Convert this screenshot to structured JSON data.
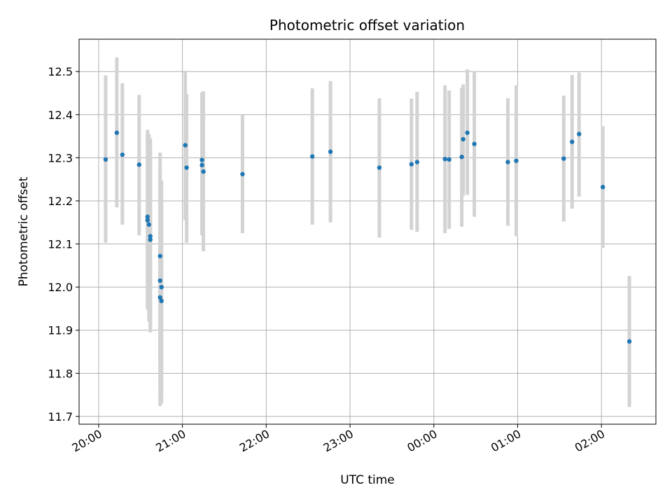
{
  "chart_data": {
    "type": "scatter",
    "title": "Photometric offset variation",
    "xlabel": "UTC time",
    "ylabel": "Photometric offset",
    "grid": true,
    "x_unit": "UTC time (HH:MM)",
    "xlim": [
      "19:46",
      "02:39"
    ],
    "ylim": [
      11.682,
      12.575
    ],
    "x_ticks": [
      "20:00",
      "21:00",
      "22:00",
      "23:00",
      "00:00",
      "01:00",
      "02:00"
    ],
    "y_ticks": [
      "11.7",
      "11.8",
      "11.9",
      "12.0",
      "12.1",
      "12.2",
      "12.3",
      "12.4",
      "12.5"
    ],
    "colors": {
      "point": "#1f77b4",
      "errorbar": "#d3d3d3",
      "grid": "#b0b0b0"
    },
    "points": [
      {
        "t": "20:05",
        "y": 12.296,
        "lo": 12.103,
        "hi": 12.491
      },
      {
        "t": "20:13",
        "y": 12.358,
        "lo": 12.185,
        "hi": 12.533
      },
      {
        "t": "20:17",
        "y": 12.307,
        "lo": 12.145,
        "hi": 12.473
      },
      {
        "t": "20:29",
        "y": 12.284,
        "lo": 12.12,
        "hi": 12.446
      },
      {
        "t": "20:35",
        "y": 12.163,
        "lo": 11.948,
        "hi": 12.365
      },
      {
        "t": "20:35",
        "y": 12.155,
        "lo": 11.96,
        "hi": 12.35
      },
      {
        "t": "20:36",
        "y": 12.145,
        "lo": 11.92,
        "hi": 12.355
      },
      {
        "t": "20:37",
        "y": 12.118,
        "lo": 11.895,
        "hi": 12.345
      },
      {
        "t": "20:37",
        "y": 12.11,
        "lo": 11.905,
        "hi": 12.33
      },
      {
        "t": "20:44",
        "y": 12.072,
        "lo": 11.83,
        "hi": 12.312
      },
      {
        "t": "20:44",
        "y": 12.015,
        "lo": 11.76,
        "hi": 12.265
      },
      {
        "t": "20:44",
        "y": 11.976,
        "lo": 11.724,
        "hi": 12.23
      },
      {
        "t": "20:45",
        "y": 12.0,
        "lo": 11.756,
        "hi": 12.247
      },
      {
        "t": "20:45",
        "y": 11.968,
        "lo": 11.73,
        "hi": 12.208
      },
      {
        "t": "21:02",
        "y": 12.329,
        "lo": 12.155,
        "hi": 12.502
      },
      {
        "t": "21:03",
        "y": 12.277,
        "lo": 12.103,
        "hi": 12.448
      },
      {
        "t": "21:14",
        "y": 12.295,
        "lo": 12.13,
        "hi": 12.452
      },
      {
        "t": "21:14",
        "y": 12.283,
        "lo": 12.12,
        "hi": 12.44
      },
      {
        "t": "21:15",
        "y": 12.268,
        "lo": 12.083,
        "hi": 12.454
      },
      {
        "t": "21:43",
        "y": 12.262,
        "lo": 12.125,
        "hi": 12.4
      },
      {
        "t": "22:33",
        "y": 12.303,
        "lo": 12.145,
        "hi": 12.461
      },
      {
        "t": "22:46",
        "y": 12.314,
        "lo": 12.15,
        "hi": 12.478
      },
      {
        "t": "23:21",
        "y": 12.277,
        "lo": 12.115,
        "hi": 12.438
      },
      {
        "t": "23:44",
        "y": 12.285,
        "lo": 12.133,
        "hi": 12.437
      },
      {
        "t": "23:48",
        "y": 12.29,
        "lo": 12.128,
        "hi": 12.453
      },
      {
        "t": "00:08",
        "y": 12.297,
        "lo": 12.125,
        "hi": 12.468
      },
      {
        "t": "00:11",
        "y": 12.296,
        "lo": 12.135,
        "hi": 12.456
      },
      {
        "t": "00:20",
        "y": 12.302,
        "lo": 12.14,
        "hi": 12.462
      },
      {
        "t": "00:21",
        "y": 12.343,
        "lo": 12.212,
        "hi": 12.47
      },
      {
        "t": "00:24",
        "y": 12.358,
        "lo": 12.214,
        "hi": 12.505
      },
      {
        "t": "00:29",
        "y": 12.332,
        "lo": 12.163,
        "hi": 12.501
      },
      {
        "t": "00:53",
        "y": 12.29,
        "lo": 12.142,
        "hi": 12.438
      },
      {
        "t": "00:59",
        "y": 12.293,
        "lo": 12.118,
        "hi": 12.468
      },
      {
        "t": "01:33",
        "y": 12.298,
        "lo": 12.152,
        "hi": 12.444
      },
      {
        "t": "01:39",
        "y": 12.337,
        "lo": 12.182,
        "hi": 12.492
      },
      {
        "t": "01:44",
        "y": 12.355,
        "lo": 12.21,
        "hi": 12.498
      },
      {
        "t": "02:01",
        "y": 12.232,
        "lo": 12.091,
        "hi": 12.373
      },
      {
        "t": "02:20",
        "y": 11.874,
        "lo": 11.722,
        "hi": 12.026
      }
    ]
  }
}
